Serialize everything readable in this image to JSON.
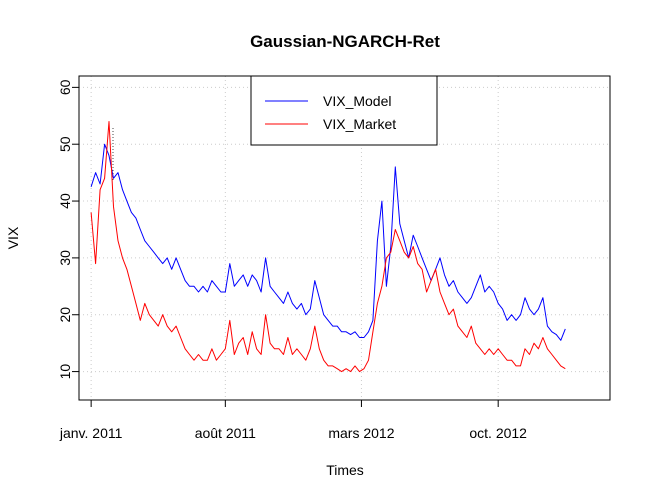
{
  "chart_data": {
    "type": "line",
    "title": "Gaussian-NGARCH-Ret",
    "xlabel": "Times",
    "ylabel": "VIX",
    "ylim": [
      5,
      62
    ],
    "xlim": [
      "2010-12-15",
      "2013-03-25"
    ],
    "x_ticks": [
      {
        "date": "2011-01-03",
        "label": "janv. 2011"
      },
      {
        "date": "2011-08-01",
        "label": "août 2011"
      },
      {
        "date": "2012-03-01",
        "label": "mars 2012"
      },
      {
        "date": "2012-10-01",
        "label": "oct. 2012"
      }
    ],
    "y_ticks": [
      10,
      20,
      30,
      40,
      50,
      60
    ],
    "grid": true,
    "legend_position": "top-center",
    "series": [
      {
        "name": "VIX_Model",
        "color": "#0000ff",
        "points": [
          [
            "2011-01-03",
            42.5
          ],
          [
            "2011-01-10",
            45
          ],
          [
            "2011-01-17",
            43
          ],
          [
            "2011-01-24",
            50
          ],
          [
            "2011-01-31",
            48
          ],
          [
            "2011-02-07",
            44
          ],
          [
            "2011-02-14",
            45
          ],
          [
            "2011-02-21",
            42
          ],
          [
            "2011-02-28",
            40
          ],
          [
            "2011-03-07",
            38
          ],
          [
            "2011-03-14",
            37
          ],
          [
            "2011-03-21",
            35
          ],
          [
            "2011-03-28",
            33
          ],
          [
            "2011-04-04",
            32
          ],
          [
            "2011-04-11",
            31
          ],
          [
            "2011-04-18",
            30
          ],
          [
            "2011-04-25",
            29
          ],
          [
            "2011-05-02",
            30
          ],
          [
            "2011-05-09",
            28
          ],
          [
            "2011-05-16",
            30
          ],
          [
            "2011-05-23",
            28
          ],
          [
            "2011-05-30",
            26
          ],
          [
            "2011-06-06",
            25
          ],
          [
            "2011-06-13",
            25
          ],
          [
            "2011-06-20",
            24
          ],
          [
            "2011-06-27",
            25
          ],
          [
            "2011-07-04",
            24
          ],
          [
            "2011-07-11",
            26
          ],
          [
            "2011-07-18",
            25
          ],
          [
            "2011-07-25",
            24
          ],
          [
            "2011-08-01",
            24
          ],
          [
            "2011-08-08",
            29
          ],
          [
            "2011-08-15",
            25
          ],
          [
            "2011-08-22",
            26
          ],
          [
            "2011-08-29",
            27
          ],
          [
            "2011-09-05",
            25
          ],
          [
            "2011-09-12",
            27
          ],
          [
            "2011-09-19",
            26
          ],
          [
            "2011-09-26",
            24
          ],
          [
            "2011-10-03",
            30
          ],
          [
            "2011-10-10",
            25
          ],
          [
            "2011-10-17",
            24
          ],
          [
            "2011-10-24",
            23
          ],
          [
            "2011-10-31",
            22
          ],
          [
            "2011-11-07",
            24
          ],
          [
            "2011-11-14",
            22
          ],
          [
            "2011-11-21",
            21
          ],
          [
            "2011-11-28",
            22
          ],
          [
            "2011-12-05",
            20
          ],
          [
            "2011-12-12",
            21
          ],
          [
            "2011-12-19",
            26
          ],
          [
            "2011-12-26",
            23
          ],
          [
            "2012-01-02",
            20
          ],
          [
            "2012-01-09",
            19
          ],
          [
            "2012-01-16",
            18
          ],
          [
            "2012-01-23",
            18
          ],
          [
            "2012-01-30",
            17
          ],
          [
            "2012-02-06",
            17
          ],
          [
            "2012-02-13",
            16.5
          ],
          [
            "2012-02-20",
            17
          ],
          [
            "2012-02-27",
            16
          ],
          [
            "2012-03-05",
            16
          ],
          [
            "2012-03-12",
            17
          ],
          [
            "2012-03-19",
            19
          ],
          [
            "2012-03-26",
            33
          ],
          [
            "2012-04-02",
            40
          ],
          [
            "2012-04-09",
            25
          ],
          [
            "2012-04-16",
            32
          ],
          [
            "2012-04-23",
            46
          ],
          [
            "2012-04-30",
            36
          ],
          [
            "2012-05-07",
            33
          ],
          [
            "2012-05-14",
            30
          ],
          [
            "2012-05-21",
            34
          ],
          [
            "2012-05-28",
            32
          ],
          [
            "2012-06-04",
            30
          ],
          [
            "2012-06-11",
            28
          ],
          [
            "2012-06-18",
            26
          ],
          [
            "2012-06-25",
            28
          ],
          [
            "2012-07-02",
            30
          ],
          [
            "2012-07-09",
            27
          ],
          [
            "2012-07-16",
            25
          ],
          [
            "2012-07-23",
            26
          ],
          [
            "2012-07-30",
            24
          ],
          [
            "2012-08-06",
            23
          ],
          [
            "2012-08-13",
            22
          ],
          [
            "2012-08-20",
            23
          ],
          [
            "2012-08-27",
            25
          ],
          [
            "2012-09-03",
            27
          ],
          [
            "2012-09-10",
            24
          ],
          [
            "2012-09-17",
            25
          ],
          [
            "2012-09-24",
            24
          ],
          [
            "2012-10-01",
            22
          ],
          [
            "2012-10-08",
            21
          ],
          [
            "2012-10-15",
            19
          ],
          [
            "2012-10-22",
            20
          ],
          [
            "2012-10-29",
            19
          ],
          [
            "2012-11-05",
            20
          ],
          [
            "2012-11-12",
            23
          ],
          [
            "2012-11-19",
            21
          ],
          [
            "2012-11-26",
            20
          ],
          [
            "2012-12-03",
            21
          ],
          [
            "2012-12-10",
            23
          ],
          [
            "2012-12-17",
            18
          ],
          [
            "2012-12-24",
            17
          ],
          [
            "2012-12-31",
            16.5
          ],
          [
            "2013-01-07",
            15.5
          ],
          [
            "2013-01-14",
            17.5
          ]
        ]
      },
      {
        "name": "VIX_Market",
        "color": "#ff0000",
        "points": [
          [
            "2011-01-03",
            38
          ],
          [
            "2011-01-10",
            29
          ],
          [
            "2011-01-17",
            42
          ],
          [
            "2011-01-24",
            44
          ],
          [
            "2011-01-31",
            54
          ],
          [
            "2011-02-07",
            39
          ],
          [
            "2011-02-14",
            33
          ],
          [
            "2011-02-21",
            30
          ],
          [
            "2011-02-28",
            28
          ],
          [
            "2011-03-07",
            25
          ],
          [
            "2011-03-14",
            22
          ],
          [
            "2011-03-21",
            19
          ],
          [
            "2011-03-28",
            22
          ],
          [
            "2011-04-04",
            20
          ],
          [
            "2011-04-11",
            19
          ],
          [
            "2011-04-18",
            18
          ],
          [
            "2011-04-25",
            20
          ],
          [
            "2011-05-02",
            18
          ],
          [
            "2011-05-09",
            17
          ],
          [
            "2011-05-16",
            18
          ],
          [
            "2011-05-23",
            16
          ],
          [
            "2011-05-30",
            14
          ],
          [
            "2011-06-06",
            13
          ],
          [
            "2011-06-13",
            12
          ],
          [
            "2011-06-20",
            13
          ],
          [
            "2011-06-27",
            12
          ],
          [
            "2011-07-04",
            12
          ],
          [
            "2011-07-11",
            14
          ],
          [
            "2011-07-18",
            12
          ],
          [
            "2011-07-25",
            13
          ],
          [
            "2011-08-01",
            14
          ],
          [
            "2011-08-08",
            19
          ],
          [
            "2011-08-15",
            13
          ],
          [
            "2011-08-22",
            15
          ],
          [
            "2011-08-29",
            16
          ],
          [
            "2011-09-05",
            13
          ],
          [
            "2011-09-12",
            17
          ],
          [
            "2011-09-19",
            14
          ],
          [
            "2011-09-26",
            13
          ],
          [
            "2011-10-03",
            20
          ],
          [
            "2011-10-10",
            15
          ],
          [
            "2011-10-17",
            14
          ],
          [
            "2011-10-24",
            14
          ],
          [
            "2011-10-31",
            13
          ],
          [
            "2011-11-07",
            16
          ],
          [
            "2011-11-14",
            13
          ],
          [
            "2011-11-21",
            14
          ],
          [
            "2011-11-28",
            13
          ],
          [
            "2011-12-05",
            12
          ],
          [
            "2011-12-12",
            14
          ],
          [
            "2011-12-19",
            18
          ],
          [
            "2011-12-26",
            14
          ],
          [
            "2012-01-02",
            12
          ],
          [
            "2012-01-09",
            11
          ],
          [
            "2012-01-16",
            11
          ],
          [
            "2012-01-23",
            10.5
          ],
          [
            "2012-01-30",
            10
          ],
          [
            "2012-02-06",
            10.5
          ],
          [
            "2012-02-13",
            10
          ],
          [
            "2012-02-20",
            11
          ],
          [
            "2012-02-27",
            10
          ],
          [
            "2012-03-05",
            10.5
          ],
          [
            "2012-03-12",
            12
          ],
          [
            "2012-03-19",
            17
          ],
          [
            "2012-03-26",
            22
          ],
          [
            "2012-04-02",
            25
          ],
          [
            "2012-04-09",
            30
          ],
          [
            "2012-04-16",
            31
          ],
          [
            "2012-04-23",
            35
          ],
          [
            "2012-04-30",
            33
          ],
          [
            "2012-05-07",
            31
          ],
          [
            "2012-05-14",
            30
          ],
          [
            "2012-05-21",
            32
          ],
          [
            "2012-05-28",
            29
          ],
          [
            "2012-06-04",
            28
          ],
          [
            "2012-06-11",
            24
          ],
          [
            "2012-06-18",
            26
          ],
          [
            "2012-06-25",
            28
          ],
          [
            "2012-07-02",
            24
          ],
          [
            "2012-07-09",
            22
          ],
          [
            "2012-07-16",
            20
          ],
          [
            "2012-07-23",
            21
          ],
          [
            "2012-07-30",
            18
          ],
          [
            "2012-08-06",
            17
          ],
          [
            "2012-08-13",
            16
          ],
          [
            "2012-08-20",
            18
          ],
          [
            "2012-08-27",
            15
          ],
          [
            "2012-09-03",
            14
          ],
          [
            "2012-09-10",
            13
          ],
          [
            "2012-09-17",
            14
          ],
          [
            "2012-09-24",
            13
          ],
          [
            "2012-10-01",
            14
          ],
          [
            "2012-10-08",
            13
          ],
          [
            "2012-10-15",
            12
          ],
          [
            "2012-10-22",
            12
          ],
          [
            "2012-10-29",
            11
          ],
          [
            "2012-11-05",
            11
          ],
          [
            "2012-11-12",
            14
          ],
          [
            "2012-11-19",
            13
          ],
          [
            "2012-11-26",
            15
          ],
          [
            "2012-12-03",
            14
          ],
          [
            "2012-12-10",
            16
          ],
          [
            "2012-12-17",
            14
          ],
          [
            "2012-12-24",
            13
          ],
          [
            "2012-12-31",
            12
          ],
          [
            "2013-01-07",
            11
          ],
          [
            "2013-01-14",
            10.5
          ]
        ]
      }
    ]
  }
}
